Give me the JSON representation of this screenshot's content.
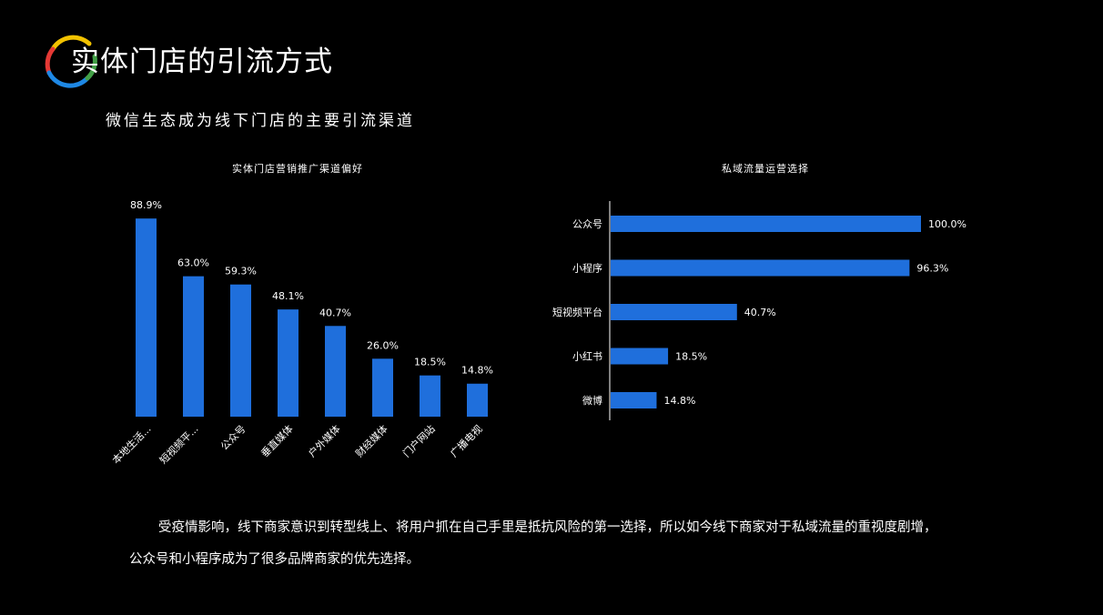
{
  "header": {
    "title": "实体门店的引流方式",
    "logo_icon": "ring-logo-icon",
    "logo_colors": [
      "#f2c200",
      "#e53935",
      "#1e88e5",
      "#43a047"
    ]
  },
  "subtitle": "微信生态成为线下门店的主要引流渠道",
  "colors": {
    "bar": "#1f6fdc",
    "background": "#000000",
    "text": "#ffffff"
  },
  "chart_data": [
    {
      "type": "bar",
      "orientation": "vertical",
      "title": "实体门店营销推广渠道偏好",
      "categories": [
        "本地生活...",
        "短视频平...",
        "公众号",
        "垂直媒体",
        "户外媒体",
        "财经媒体",
        "门户网站",
        "广播电视"
      ],
      "values": [
        88.9,
        63.0,
        59.3,
        48.1,
        40.7,
        26.0,
        18.5,
        14.8
      ],
      "value_labels": [
        "88.9%",
        "63.0%",
        "59.3%",
        "48.1%",
        "40.7%",
        "26.0%",
        "18.5%",
        "14.8%"
      ],
      "ylim": [
        0,
        100
      ],
      "grid": false,
      "xlabel": "",
      "ylabel": ""
    },
    {
      "type": "bar",
      "orientation": "horizontal",
      "title": "私域流量运营选择",
      "categories": [
        "公众号",
        "小程序",
        "短视频平台",
        "小红书",
        "微博"
      ],
      "values": [
        100.0,
        96.3,
        40.7,
        18.5,
        14.8
      ],
      "value_labels": [
        "100.0%",
        "96.3%",
        "40.7%",
        "18.5%",
        "14.8%"
      ],
      "xlim": [
        0,
        100
      ],
      "grid": false,
      "xlabel": "",
      "ylabel": ""
    }
  ],
  "paragraph": {
    "line1": "受疫情影响，线下商家意识到转型线上、将用户抓在自己手里是抵抗风险的第一选择，所以如今线下商家对于私域流量的重视度剧增，",
    "line2": "公众号和小程序成为了很多品牌商家的优先选择。"
  }
}
